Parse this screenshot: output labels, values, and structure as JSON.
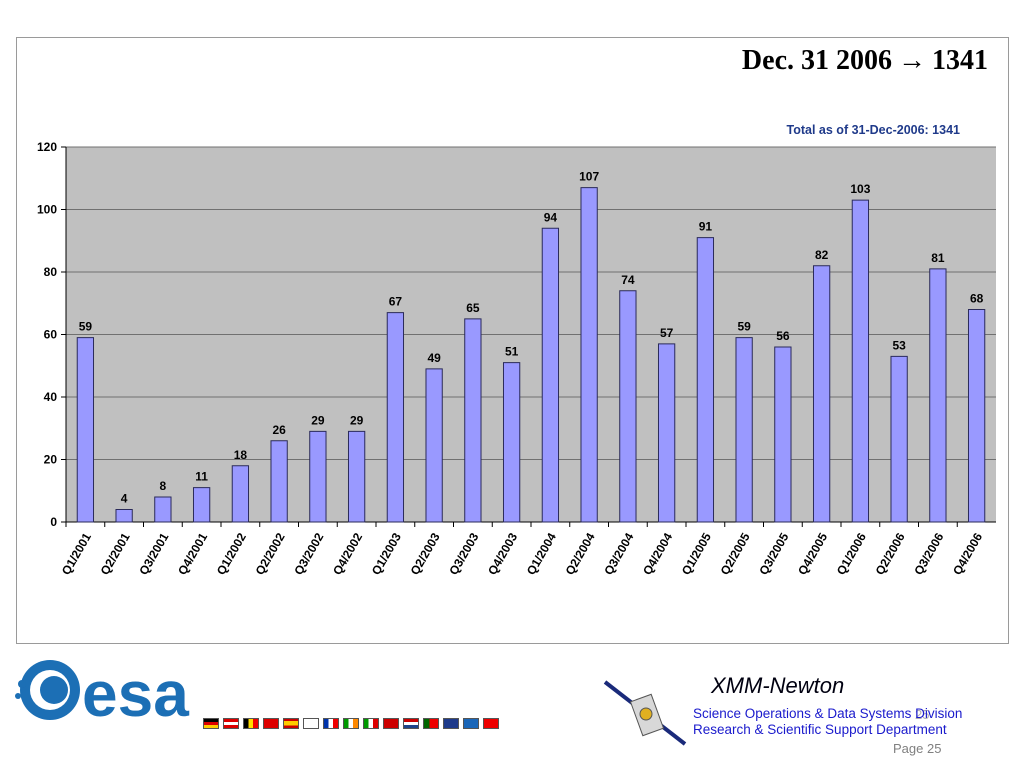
{
  "headline": {
    "prefix": "Dec. 31 2006",
    "arrow": "→",
    "value": "1341"
  },
  "chart_data": {
    "type": "bar",
    "title": "Total as of 31-Dec-2006: 1341",
    "xlabel": "",
    "ylabel": "",
    "ylim": [
      0,
      120
    ],
    "yticks": [
      0,
      20,
      40,
      60,
      80,
      100,
      120
    ],
    "grid": true,
    "categories": [
      "Q1/2001",
      "Q2/2001",
      "Q3/2001",
      "Q4/2001",
      "Q1/2002",
      "Q2/2002",
      "Q3/2002",
      "Q4/2002",
      "Q1/2003",
      "Q2/2003",
      "Q3/2003",
      "Q4/2003",
      "Q1/2004",
      "Q2/2004",
      "Q3/2004",
      "Q4/2004",
      "Q1/2005",
      "Q2/2005",
      "Q3/2005",
      "Q4/2005",
      "Q1/2006",
      "Q2/2006",
      "Q3/2006",
      "Q4/2006"
    ],
    "values": [
      59,
      4,
      8,
      11,
      18,
      26,
      29,
      29,
      67,
      49,
      65,
      51,
      94,
      107,
      74,
      57,
      91,
      59,
      56,
      82,
      103,
      53,
      81,
      68
    ],
    "colors": {
      "bar": "#9999ff",
      "bar_edge": "#2a2a5a",
      "plot_bg": "#c0c0c0",
      "title": "#1f3a8a"
    }
  },
  "footer": {
    "logo": "esa",
    "mission": "XMM-Newton",
    "division": "Science Operations & Data Systems Division",
    "department": "Research & Scientific Support Department",
    "page": "Page 25",
    "page_ghost": "25"
  }
}
